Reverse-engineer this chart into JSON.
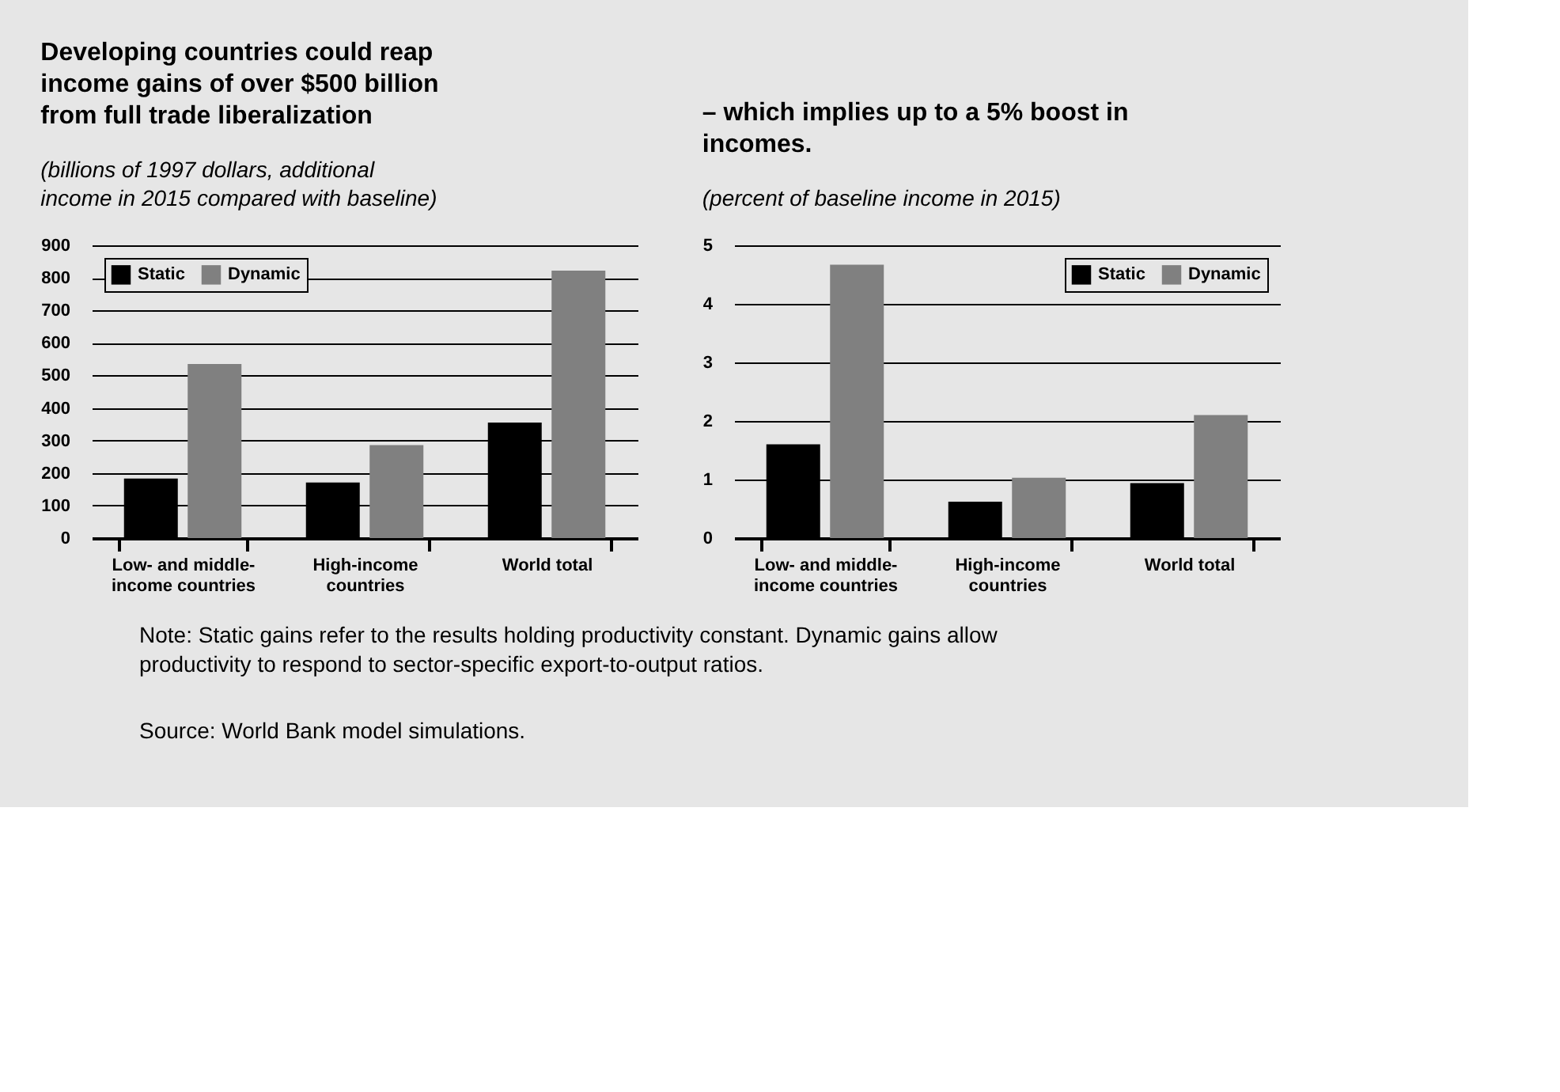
{
  "chart_data": [
    {
      "type": "bar",
      "title": "Developing countries could reap income gains of over $500 billion from full trade liberalization",
      "subtitle": "(billions of 1997 dollars, additional income in 2015 compared with baseline)",
      "categories": [
        "Low- and middle-income countries",
        "High-income countries",
        "World total"
      ],
      "series": [
        {
          "name": "Static",
          "color": "#000000",
          "values": [
            183,
            171,
            355
          ]
        },
        {
          "name": "Dynamic",
          "color": "#808080",
          "values": [
            535,
            286,
            822
          ]
        }
      ],
      "ylim": [
        0,
        900
      ],
      "yticks": [
        0,
        100,
        200,
        300,
        400,
        500,
        600,
        700,
        800,
        900
      ],
      "grid": "y",
      "legend": "top left",
      "annotations": [
        "Note: Static gains refer to the results holding productivity constant. Dynamic gains allow productivity to respond to sector-specific export-to-output ratios.",
        "Source: World Bank model simulations."
      ]
    },
    {
      "type": "bar",
      "title": "– which implies up to a 5% boost in incomes.",
      "subtitle": "(percent of baseline income in 2015)",
      "categories": [
        "Low- and middle-income countries",
        "High-income countries",
        "World total"
      ],
      "series": [
        {
          "name": "Static",
          "color": "#000000",
          "values": [
            1.6,
            0.62,
            0.94
          ]
        },
        {
          "name": "Dynamic",
          "color": "#808080",
          "values": [
            4.67,
            1.03,
            2.1
          ]
        }
      ],
      "ylim": [
        0,
        5
      ],
      "yticks": [
        0,
        1,
        2,
        3,
        4,
        5
      ],
      "grid": "y",
      "legend": "top right"
    }
  ]
}
